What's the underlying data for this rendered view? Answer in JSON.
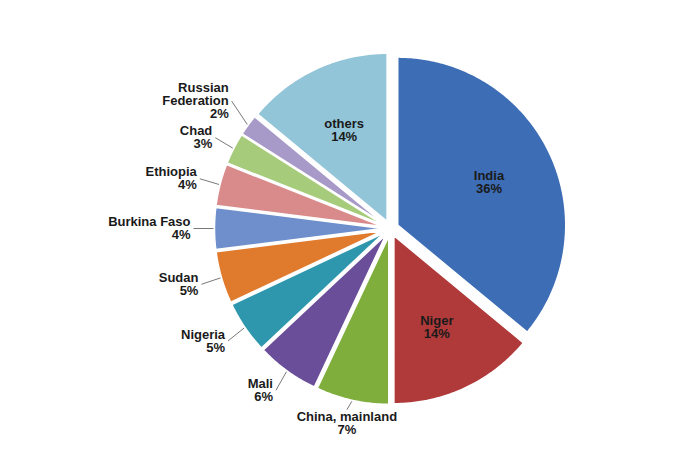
{
  "chart_data": {
    "type": "pie",
    "categories": [
      "India",
      "Niger",
      "China, mainland",
      "Mali",
      "Nigeria",
      "Sudan",
      "Burkina Faso",
      "Ethiopia",
      "Chad",
      "Russian Federation",
      "others"
    ],
    "values": [
      36,
      14,
      7,
      6,
      5,
      5,
      4,
      4,
      3,
      2,
      14
    ],
    "value_labels": [
      "36%",
      "14%",
      "7%",
      "6%",
      "5%",
      "5%",
      "4%",
      "4%",
      "3%",
      "2%",
      "14%"
    ],
    "colors": [
      "#3d6db5",
      "#b03a3a",
      "#7fae3c",
      "#6b4e9a",
      "#2f97ad",
      "#e07b2e",
      "#6e8fcc",
      "#d98a8a",
      "#a6cb7a",
      "#a89ac8",
      "#92c5d8"
    ],
    "data_labels": true
  }
}
